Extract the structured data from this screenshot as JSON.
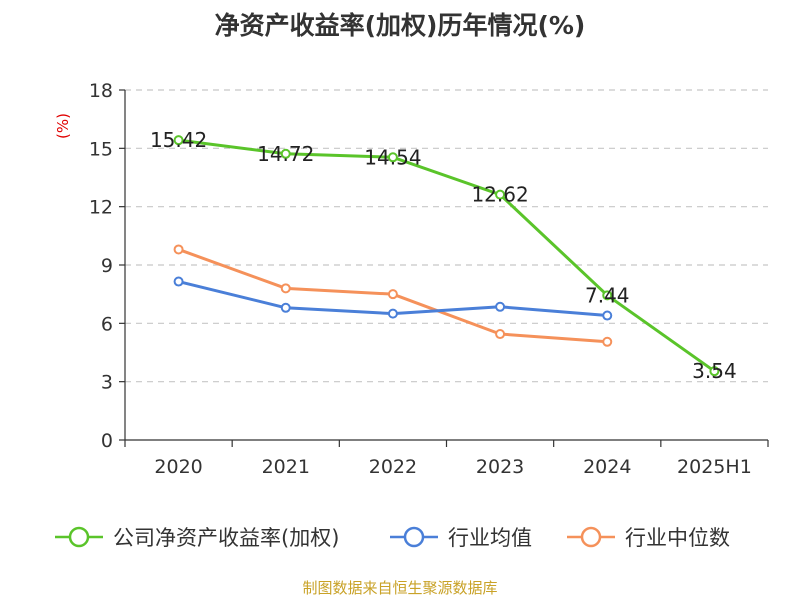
{
  "title": "净资产收益率(加权)历年情况(%)",
  "source": "制图数据来自恒生聚源数据库",
  "chart_data": {
    "type": "line",
    "title": "净资产收益率(加权)历年情况(%)",
    "ylabel": "(%)",
    "ylim": [
      0,
      18
    ],
    "yticks": [
      "0",
      "3",
      "6",
      "9",
      "12",
      "15",
      "18"
    ],
    "grid": true,
    "legend_position": "bottom",
    "categories": [
      "2020",
      "2021",
      "2022",
      "2023",
      "2024",
      "2025H1"
    ],
    "series": [
      {
        "name": "公司净资产收益率(加权)",
        "color": "#5ac42a",
        "values": [
          15.42,
          14.72,
          14.54,
          12.62,
          7.44,
          3.54
        ],
        "labels": [
          "15.42",
          "14.72",
          "14.54",
          "12.62",
          "7.44",
          "3.54"
        ]
      },
      {
        "name": "行业均值",
        "color": "#4a7fd8",
        "values": [
          8.15,
          6.8,
          6.5,
          6.85,
          6.4,
          null
        ]
      },
      {
        "name": "行业中位数",
        "color": "#f5915a",
        "values": [
          9.8,
          7.8,
          7.5,
          5.45,
          5.05,
          null
        ]
      }
    ]
  }
}
